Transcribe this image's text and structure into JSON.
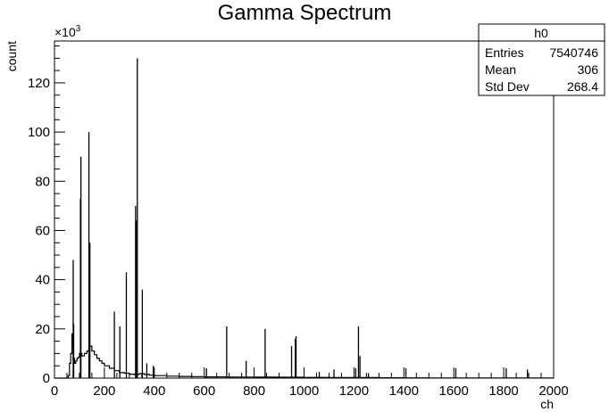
{
  "chart_data": {
    "type": "line",
    "title": "Gamma Spectrum",
    "xlabel": "ch",
    "ylabel": "count",
    "y_multiplier_label": "×10",
    "y_multiplier_exponent": "3",
    "xlim": [
      0,
      2000
    ],
    "ylim": [
      0,
      137000
    ],
    "x_ticks": [
      0,
      200,
      400,
      600,
      800,
      1000,
      1200,
      1400,
      1600,
      1800,
      2000
    ],
    "x_tick_labels": [
      "0",
      "200",
      "400",
      "600",
      "800",
      "1000",
      "1200",
      "1400",
      "1600",
      "1800",
      "2000"
    ],
    "y_ticks": [
      0,
      20000,
      40000,
      60000,
      80000,
      100000,
      120000
    ],
    "y_tick_labels": [
      "0",
      "20",
      "40",
      "60",
      "80",
      "100",
      "120"
    ],
    "grid": false,
    "stats_box": {
      "title": "h0",
      "rows": [
        {
          "label": "Entries",
          "value": "7540746"
        },
        {
          "label": "Mean",
          "value": "306"
        },
        {
          "label": "Std Dev",
          "value": "268.4"
        }
      ]
    },
    "series": [
      {
        "x": [
          0,
          50,
          55,
          60,
          65,
          70,
          72,
          75,
          80,
          85,
          90,
          95,
          100,
          110,
          120,
          130,
          140,
          150,
          160,
          170,
          180,
          190,
          200,
          220,
          240,
          260,
          280,
          300,
          320,
          340,
          360,
          380,
          400,
          450,
          500,
          550,
          600,
          700,
          800,
          900,
          1000,
          1100,
          1200,
          1300,
          1400,
          1500,
          1600,
          1700,
          1800,
          1900,
          2000
        ],
        "values": [
          0,
          0,
          1000,
          6000,
          10000,
          18000,
          14000,
          8000,
          6000,
          7000,
          8000,
          8500,
          10000,
          9000,
          10000,
          11000,
          13000,
          11000,
          9500,
          8000,
          7000,
          6000,
          5000,
          4000,
          3000,
          2200,
          2000,
          1600,
          1500,
          1800,
          1500,
          1200,
          1000,
          800,
          700,
          600,
          500,
          450,
          400,
          350,
          300,
          250,
          200,
          150,
          100,
          80,
          60,
          50,
          40,
          30,
          20
        ]
      }
    ],
    "peaks": [
      {
        "x": 75,
        "y": 48000
      },
      {
        "x": 77,
        "y": 22000
      },
      {
        "x": 104,
        "y": 73000
      },
      {
        "x": 106,
        "y": 90000
      },
      {
        "x": 138,
        "y": 100000
      },
      {
        "x": 142,
        "y": 55000
      },
      {
        "x": 240,
        "y": 27000
      },
      {
        "x": 262,
        "y": 21000
      },
      {
        "x": 288,
        "y": 43000
      },
      {
        "x": 325,
        "y": 70000
      },
      {
        "x": 328,
        "y": 64000
      },
      {
        "x": 332,
        "y": 130000
      },
      {
        "x": 352,
        "y": 36000
      },
      {
        "x": 370,
        "y": 6000
      },
      {
        "x": 396,
        "y": 5000
      },
      {
        "x": 609,
        "y": 4000
      },
      {
        "x": 690,
        "y": 21000
      },
      {
        "x": 768,
        "y": 7000
      },
      {
        "x": 844,
        "y": 20000
      },
      {
        "x": 950,
        "y": 13000
      },
      {
        "x": 965,
        "y": 16000
      },
      {
        "x": 968,
        "y": 17000
      },
      {
        "x": 1061,
        "y": 2500
      },
      {
        "x": 1120,
        "y": 3500
      },
      {
        "x": 1207,
        "y": 4000
      },
      {
        "x": 1218,
        "y": 21000
      },
      {
        "x": 1224,
        "y": 9000
      },
      {
        "x": 1258,
        "y": 2000
      },
      {
        "x": 1408,
        "y": 4000
      },
      {
        "x": 1608,
        "y": 4000
      },
      {
        "x": 1810,
        "y": 4000
      },
      {
        "x": 1895,
        "y": 3500
      }
    ]
  }
}
